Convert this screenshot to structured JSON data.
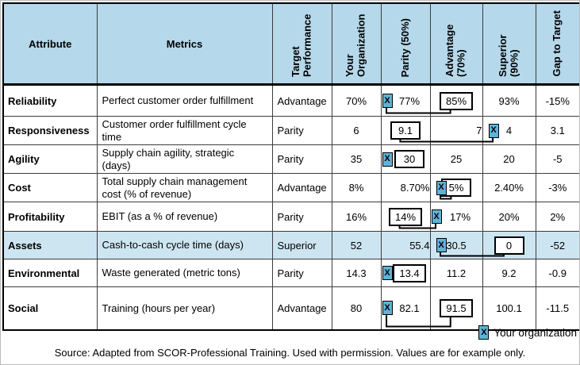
{
  "table": {
    "columns": [
      "Attribute",
      "Metrics",
      "Target Performance",
      "Your Organization",
      "Parity (50%)",
      "Advantage (70%)",
      "Superior (90%)",
      "Gap to Target"
    ],
    "rows": [
      {
        "attribute": "Reliability",
        "metric": "Perfect customer order fulfillment",
        "target": "Advantage",
        "your_org": "70%",
        "parity": {
          "value": "77%",
          "marker": "left"
        },
        "advantage": {
          "value": "85%",
          "box": true
        },
        "superior": {
          "value": "93%"
        },
        "gap": "-15%",
        "highlight": false
      },
      {
        "attribute": "Responsiveness",
        "metric": "Customer order fulfillment cycle time",
        "target": "Parity",
        "your_org": "6",
        "parity": {
          "value": "9.1",
          "box": true
        },
        "advantage": {
          "value": "7",
          "marker": "right"
        },
        "superior": {
          "value": "4"
        },
        "gap": "3.1",
        "highlight": false
      },
      {
        "attribute": "Agility",
        "metric": "Supply chain agility, strategic (days)",
        "target": "Parity",
        "your_org": "35",
        "parity": {
          "value": "30",
          "box": true,
          "marker": "left"
        },
        "advantage": {
          "value": "25"
        },
        "superior": {
          "value": "20"
        },
        "gap": "-5",
        "highlight": false
      },
      {
        "attribute": "Cost",
        "metric": "Total supply chain management cost (% of revenue)",
        "target": "Advantage",
        "your_org": "8%",
        "parity": {
          "value": "8.70%",
          "marker": "right"
        },
        "advantage": {
          "value": "5%",
          "box": true
        },
        "superior": {
          "value": "2.40%"
        },
        "gap": "-3%",
        "highlight": false
      },
      {
        "attribute": "Profitability",
        "metric": "EBIT (as a % of revenue)",
        "target": "Parity",
        "your_org": "16%",
        "parity": {
          "value": "14%",
          "box": true
        },
        "advantage": {
          "value": "17%",
          "marker": "left"
        },
        "superior": {
          "value": "20%"
        },
        "gap": "2%",
        "highlight": false
      },
      {
        "attribute": "Assets",
        "metric": "Cash-to-cash cycle time (days)",
        "target": "Superior",
        "your_org": "52",
        "parity": {
          "value": "55.4",
          "marker": "right"
        },
        "advantage": {
          "value": "30.5"
        },
        "superior": {
          "value": "0",
          "box": true
        },
        "gap": "-52",
        "highlight": true
      },
      {
        "attribute": "Environmental",
        "metric": "Waste generated (metric tons)",
        "target": "Parity",
        "your_org": "14.3",
        "parity": {
          "value": "13.4",
          "box": true,
          "marker": "left"
        },
        "advantage": {
          "value": "11.2"
        },
        "superior": {
          "value": "9.2"
        },
        "gap": "-0.9",
        "highlight": false
      },
      {
        "attribute": "Social",
        "metric": "Training (hours per year)",
        "target": "Advantage",
        "your_org": "80",
        "parity": {
          "value": "82.1",
          "marker": "left"
        },
        "advantage": {
          "value": "91.5",
          "box": true
        },
        "superior": {
          "value": "100.1"
        },
        "gap": "-11.5",
        "highlight": false
      }
    ]
  },
  "legend": {
    "marker_char": "X",
    "label": "Your organization"
  },
  "source": "Source: Adapted from SCOR-Professional Training. Used with permission. Values are for example only.",
  "colors": {
    "header_bg": "#b5d8ea",
    "highlight_bg": "#cde5f1",
    "marker_bg": "#5fb2d8",
    "border": "#000000"
  }
}
